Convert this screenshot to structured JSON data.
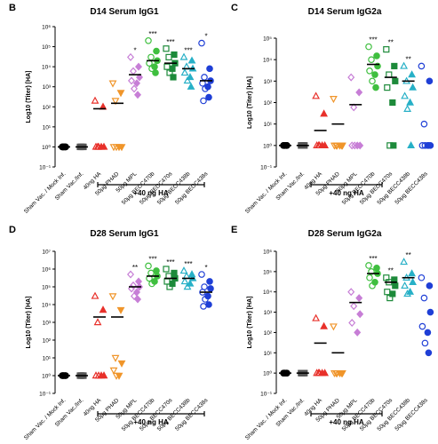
{
  "group_labels": [
    "Sham Vac. / Mock Inf.",
    "Sham Vac./Inf.",
    "40ng HA",
    "50μg PHAD",
    "50μg MPL",
    "50μg BECC470b",
    "50μg BECC470s",
    "50μg BECC438b",
    "50μg BECC438s"
  ],
  "group_colors": [
    "#000000",
    "#555555",
    "#e8302a",
    "#f0952a",
    "#c77ed6",
    "#3fbf3f",
    "#1d8a3a",
    "#27b0c7",
    "#1f3fd6"
  ],
  "bracket_label": "+40 ng HA",
  "chart_data": [
    {
      "panel": "B",
      "type": "scatter",
      "title": "D14 Serum IgG1",
      "ylabel": "Log10 (Titer) [HA]",
      "yscale": "log",
      "ylim": [
        0.1,
        1000000
      ],
      "yticks": [
        "10⁻¹",
        "10⁰",
        "10¹",
        "10²",
        "10³",
        "10⁴",
        "10⁵",
        "10⁶"
      ],
      "significance": [
        "",
        "",
        "",
        "",
        "*",
        "***",
        "***",
        "***",
        "*"
      ],
      "series": [
        {
          "values": [
            1,
            1,
            1,
            1,
            1,
            1,
            1
          ]
        },
        {
          "values": [
            1,
            1,
            1,
            1,
            1,
            1,
            1
          ]
        },
        {
          "mean": 80,
          "values": [
            200,
            100,
            1,
            1,
            1,
            1,
            1
          ]
        },
        {
          "mean": 150,
          "values": [
            1500,
            500,
            200,
            1,
            1,
            1,
            1
          ]
        },
        {
          "mean": 4000,
          "values": [
            30000,
            10000,
            6000,
            3000,
            2000,
            1500,
            800,
            400
          ]
        },
        {
          "mean": 20000,
          "values": [
            200000,
            60000,
            30000,
            20000,
            15000,
            10000,
            8000,
            5000
          ]
        },
        {
          "mean": 15000,
          "values": [
            80000,
            40000,
            30000,
            15000,
            10000,
            8000,
            5000,
            3000
          ]
        },
        {
          "mean": 8000,
          "values": [
            30000,
            20000,
            10000,
            8000,
            5000,
            3000,
            2000,
            1000
          ]
        },
        {
          "mean": 2000,
          "values": [
            150000,
            8000,
            3000,
            2000,
            1500,
            1000,
            800,
            300,
            200
          ]
        }
      ]
    },
    {
      "panel": "C",
      "type": "scatter",
      "title": "D14 Serum IgG2a",
      "ylabel": "Log10 (Titer) [HA]",
      "yscale": "log",
      "ylim": [
        0.1,
        100000
      ],
      "yticks": [
        "10⁻¹",
        "10⁰",
        "10¹",
        "10²",
        "10³",
        "10⁴",
        "10⁵"
      ],
      "significance": [
        "",
        "",
        "",
        "",
        "",
        "***",
        "**",
        "**",
        ""
      ],
      "series": [
        {
          "values": [
            1,
            1,
            1,
            1,
            1,
            1,
            1
          ]
        },
        {
          "values": [
            1,
            1,
            1,
            1,
            1,
            1,
            1
          ]
        },
        {
          "mean": 5,
          "values": [
            200,
            30,
            1,
            1,
            1,
            1,
            1
          ]
        },
        {
          "mean": 10,
          "values": [
            150,
            1,
            1,
            1,
            1,
            1,
            1
          ]
        },
        {
          "mean": 80,
          "values": [
            1500,
            300,
            60,
            1,
            1,
            1,
            1
          ]
        },
        {
          "mean": 6000,
          "values": [
            40000,
            15000,
            10000,
            5000,
            3000,
            2000,
            1000,
            500
          ]
        },
        {
          "mean": 1500,
          "values": [
            30000,
            5000,
            2000,
            1000,
            500,
            100,
            1,
            1
          ]
        },
        {
          "mean": 1000,
          "values": [
            5000,
            2000,
            1000,
            500,
            200,
            100,
            50,
            1
          ]
        },
        {
          "values": [
            5000,
            1000,
            10,
            1,
            1,
            1,
            1,
            1
          ]
        }
      ]
    },
    {
      "panel": "D",
      "type": "scatter",
      "title": "D28 Serum IgG1",
      "ylabel": "Log10 (Titer) [HA]",
      "yscale": "log",
      "ylim": [
        0.1,
        10000000
      ],
      "yticks": [
        "10⁻¹",
        "10⁰",
        "10¹",
        "10²",
        "10³",
        "10⁴",
        "10⁵",
        "10⁶",
        "10⁷"
      ],
      "significance": [
        "",
        "",
        "",
        "",
        "**",
        "***",
        "***",
        "***",
        "*"
      ],
      "series": [
        {
          "values": [
            1,
            1,
            1,
            1,
            1,
            1,
            1
          ]
        },
        {
          "values": [
            1,
            1,
            1,
            1,
            1,
            1,
            1
          ]
        },
        {
          "mean": 2000,
          "values": [
            30000,
            5000,
            1000,
            1,
            1,
            1,
            1
          ]
        },
        {
          "mean": 2000,
          "values": [
            30000,
            5000,
            10,
            5,
            2,
            1,
            1
          ]
        },
        {
          "mean": 100000,
          "values": [
            500000,
            200000,
            120000,
            100000,
            80000,
            50000,
            30000,
            20000
          ]
        },
        {
          "mean": 400000,
          "values": [
            1500000,
            800000,
            600000,
            400000,
            300000,
            200000,
            150000
          ]
        },
        {
          "mean": 300000,
          "values": [
            1000000,
            600000,
            400000,
            300000,
            200000,
            150000,
            100000
          ]
        },
        {
          "mean": 300000,
          "values": [
            800000,
            500000,
            400000,
            300000,
            200000,
            150000,
            100000
          ]
        },
        {
          "mean": 50000,
          "values": [
            500000,
            200000,
            100000,
            80000,
            50000,
            30000,
            20000,
            10000,
            8000
          ]
        }
      ]
    },
    {
      "panel": "E",
      "type": "scatter",
      "title": "D28 Serum IgG2a",
      "ylabel": "Log10 (Titer) [HA]",
      "yscale": "log",
      "ylim": [
        0.1,
        1000000
      ],
      "yticks": [
        "10⁻¹",
        "10⁰",
        "10¹",
        "10²",
        "10³",
        "10⁴",
        "10⁵",
        "10⁶"
      ],
      "significance": [
        "",
        "",
        "",
        "",
        "",
        "***",
        "**",
        "**",
        ""
      ],
      "series": [
        {
          "values": [
            1,
            1,
            1,
            1,
            1,
            1,
            1
          ]
        },
        {
          "values": [
            1,
            1,
            1,
            1,
            1,
            1,
            1
          ]
        },
        {
          "mean": 30,
          "values": [
            500,
            200,
            1,
            1,
            1,
            1,
            1
          ]
        },
        {
          "mean": 10,
          "values": [
            200,
            1,
            1,
            1,
            1,
            1,
            1
          ]
        },
        {
          "mean": 3000,
          "values": [
            10000,
            5000,
            2000,
            800,
            300,
            100
          ]
        },
        {
          "mean": 80000,
          "values": [
            200000,
            150000,
            100000,
            80000,
            50000,
            30000,
            20000
          ]
        },
        {
          "mean": 30000,
          "values": [
            50000,
            40000,
            30000,
            20000,
            10000,
            8000,
            5000
          ]
        },
        {
          "mean": 50000,
          "values": [
            300000,
            80000,
            50000,
            30000,
            20000,
            10000,
            8000
          ]
        },
        {
          "values": [
            50000,
            20000,
            5000,
            1000,
            200,
            100,
            30,
            10
          ]
        }
      ]
    }
  ]
}
